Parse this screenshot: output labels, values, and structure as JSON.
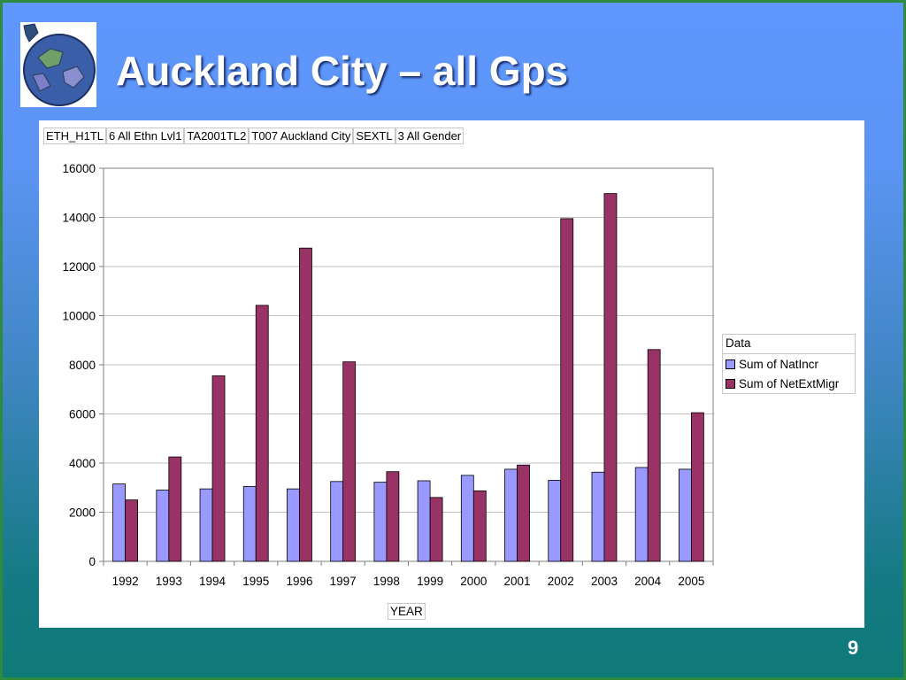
{
  "slide": {
    "title": "Auckland City – all Gps",
    "page_number": "9"
  },
  "filters": [
    {
      "field": "ETH_H1TL",
      "value": "6 All Ethn Lvl1"
    },
    {
      "field": "TA2001TL2",
      "value": "T007 Auckland City"
    },
    {
      "field": "SEXTL",
      "value": "3 All Gender"
    }
  ],
  "legend": {
    "title": "Data",
    "items": [
      {
        "label": "Sum of NatIncr",
        "color": "#9999ff"
      },
      {
        "label": "Sum of NetExtMigr",
        "color": "#993366"
      }
    ]
  },
  "chart_data": {
    "type": "bar",
    "categories": [
      "1992",
      "1993",
      "1994",
      "1995",
      "1996",
      "1997",
      "1998",
      "1999",
      "2000",
      "2001",
      "2002",
      "2003",
      "2004",
      "2005"
    ],
    "series": [
      {
        "name": "Sum of NatIncr",
        "color": "#9999ff",
        "values": [
          3150,
          2900,
          2950,
          3050,
          2950,
          3250,
          3220,
          3280,
          3500,
          3750,
          3300,
          3630,
          3820,
          3750
        ]
      },
      {
        "name": "Sum of NetExtMigr",
        "color": "#993366",
        "values": [
          2500,
          4250,
          7550,
          10420,
          12750,
          8120,
          3650,
          2600,
          2870,
          3920,
          13950,
          14970,
          8620,
          6050
        ]
      }
    ],
    "xlabel": "YEAR",
    "ylabel": "",
    "ylim": [
      0,
      16000
    ],
    "yticks": [
      0,
      2000,
      4000,
      6000,
      8000,
      10000,
      12000,
      14000,
      16000
    ],
    "grid": true,
    "legend_position": "right"
  }
}
